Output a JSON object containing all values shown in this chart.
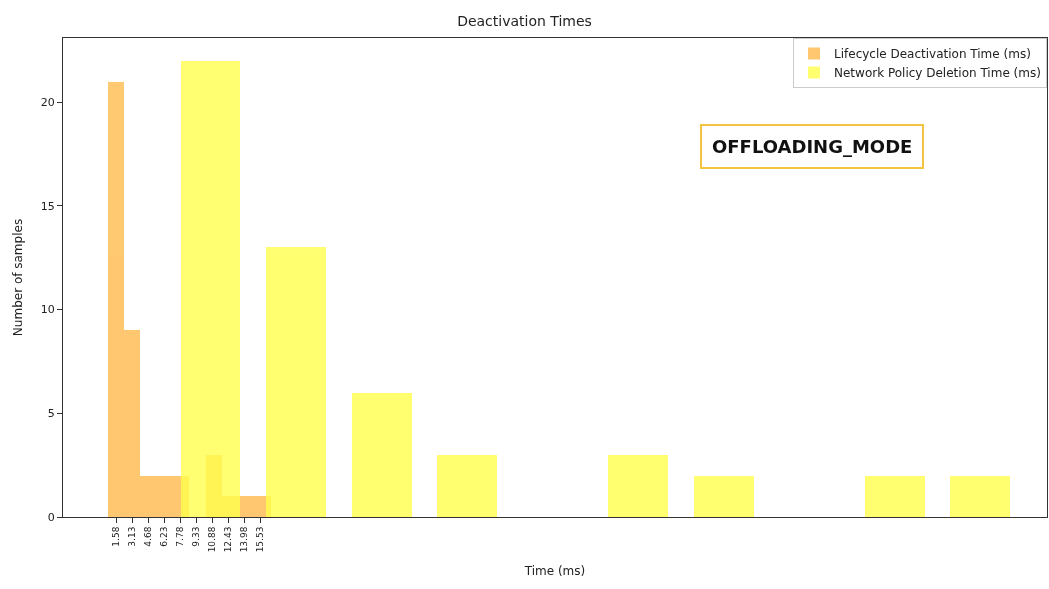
{
  "chart_data": {
    "type": "bar",
    "title": "Deactivation Times",
    "xlabel": "Time (ms)",
    "ylabel": "Number of samples",
    "series": [
      {
        "name": "Lifecycle Deactivation Time (ms)",
        "color": "#ffbb4d",
        "x": [
          1.54,
          3.12,
          4.7,
          6.28,
          7.86,
          9.44,
          11.02,
          12.6,
          14.18,
          15.76
        ],
        "values": [
          21,
          9,
          2,
          2,
          2,
          0,
          3,
          1,
          1,
          1
        ]
      },
      {
        "name": "Network Policy Deletion Time (ms)",
        "color": "#ffff4d",
        "x": [
          10.72,
          19.02,
          27.32,
          35.62,
          43.92,
          52.22,
          60.52,
          68.82,
          77.12,
          85.42
        ],
        "values": [
          22,
          13,
          6,
          3,
          0,
          3,
          2,
          0,
          2,
          2
        ]
      }
    ],
    "xlim": [
      -3.6,
      91.9
    ],
    "ylim": [
      0,
      23.1
    ],
    "xticks": [
      1.58,
      3.13,
      4.68,
      6.23,
      7.78,
      9.33,
      10.88,
      12.43,
      13.98,
      15.53
    ],
    "yticks": [
      0,
      5,
      10,
      15,
      20
    ],
    "grid": false,
    "legend": "top right",
    "annotations": [
      "OFFLOADING_MODE"
    ]
  }
}
